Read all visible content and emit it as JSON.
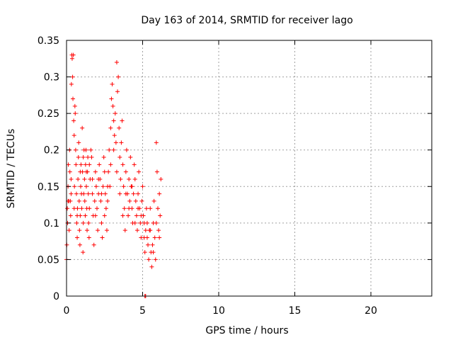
{
  "chart_data": {
    "type": "scatter",
    "title": "Day 163 of 2014, SRMTID for receiver lago",
    "xlabel": "GPS time / hours",
    "ylabel": "SRMTID / TECUs",
    "xlim": [
      0,
      24
    ],
    "ylim": [
      0,
      0.35
    ],
    "x_ticks": [
      0,
      5,
      10,
      15,
      20
    ],
    "x_tick_labels": [
      "0",
      "5",
      "10",
      "15",
      "20"
    ],
    "y_ticks": [
      0,
      0.05,
      0.1,
      0.15,
      0.2,
      0.25,
      0.3,
      0.35
    ],
    "y_tick_labels": [
      "0",
      "0.05",
      "0.1",
      "0.15",
      "0.2",
      "0.25",
      "0.3",
      "0.35"
    ],
    "grid": true,
    "marker": "+",
    "series": [
      {
        "name": "SRMTID",
        "color": "#ff0000",
        "points": [
          [
            0.0,
            0.05
          ],
          [
            0.02,
            0.07
          ],
          [
            0.05,
            0.12
          ],
          [
            0.07,
            0.1
          ],
          [
            0.1,
            0.15
          ],
          [
            0.12,
            0.18
          ],
          [
            0.15,
            0.13
          ],
          [
            0.17,
            0.09
          ],
          [
            0.2,
            0.2
          ],
          [
            0.22,
            0.17
          ],
          [
            0.25,
            0.13
          ],
          [
            0.27,
            0.11
          ],
          [
            0.3,
            0.16
          ],
          [
            0.32,
            0.29
          ],
          [
            0.35,
            0.33
          ],
          [
            0.37,
            0.325
          ],
          [
            0.4,
            0.3
          ],
          [
            0.42,
            0.27
          ],
          [
            0.45,
            0.33
          ],
          [
            0.47,
            0.24
          ],
          [
            0.5,
            0.22
          ],
          [
            0.52,
            0.15
          ],
          [
            0.55,
            0.26
          ],
          [
            0.57,
            0.25
          ],
          [
            0.6,
            0.2
          ],
          [
            0.62,
            0.18
          ],
          [
            0.65,
            0.14
          ],
          [
            0.67,
            0.1
          ],
          [
            0.7,
            0.08
          ],
          [
            0.72,
            0.12
          ],
          [
            0.75,
            0.16
          ],
          [
            0.78,
            0.19
          ],
          [
            0.8,
            0.21
          ],
          [
            0.83,
            0.13
          ],
          [
            0.85,
            0.09
          ],
          [
            0.88,
            0.07
          ],
          [
            0.9,
            0.11
          ],
          [
            0.93,
            0.15
          ],
          [
            0.95,
            0.18
          ],
          [
            0.98,
            0.14
          ],
          [
            1.0,
            0.12
          ],
          [
            1.03,
            0.23
          ],
          [
            1.05,
            0.17
          ],
          [
            1.08,
            0.06
          ],
          [
            1.1,
            0.1
          ],
          [
            1.13,
            0.14
          ],
          [
            1.15,
            0.2
          ],
          [
            1.18,
            0.16
          ],
          [
            1.2,
            0.13
          ],
          [
            1.23,
            0.11
          ],
          [
            1.25,
            0.18
          ],
          [
            1.28,
            0.2
          ],
          [
            1.3,
            0.15
          ],
          [
            1.33,
            0.12
          ],
          [
            1.35,
            0.09
          ],
          [
            1.38,
            0.17
          ],
          [
            1.4,
            0.19
          ],
          [
            1.43,
            0.14
          ],
          [
            1.45,
            0.1
          ],
          [
            1.48,
            0.08
          ],
          [
            1.5,
            0.12
          ],
          [
            1.55,
            0.16
          ],
          [
            1.6,
            0.2
          ],
          [
            1.65,
            0.19
          ],
          [
            1.7,
            0.14
          ],
          [
            1.75,
            0.11
          ],
          [
            1.8,
            0.07
          ],
          [
            1.85,
            0.13
          ],
          [
            1.9,
            0.17
          ],
          [
            1.95,
            0.15
          ],
          [
            2.0,
            0.12
          ],
          [
            2.05,
            0.09
          ],
          [
            2.1,
            0.14
          ],
          [
            2.15,
            0.18
          ],
          [
            2.2,
            0.16
          ],
          [
            2.25,
            0.13
          ],
          [
            2.3,
            0.1
          ],
          [
            2.35,
            0.08
          ],
          [
            2.4,
            0.15
          ],
          [
            2.45,
            0.19
          ],
          [
            2.5,
            0.17
          ],
          [
            2.55,
            0.14
          ],
          [
            2.6,
            0.12
          ],
          [
            2.65,
            0.09
          ],
          [
            2.7,
            0.13
          ],
          [
            2.75,
            0.17
          ],
          [
            2.8,
            0.2
          ],
          [
            2.85,
            0.15
          ],
          [
            2.9,
            0.23
          ],
          [
            2.95,
            0.27
          ],
          [
            3.0,
            0.29
          ],
          [
            3.05,
            0.26
          ],
          [
            3.1,
            0.24
          ],
          [
            3.15,
            0.22
          ],
          [
            3.2,
            0.25
          ],
          [
            3.25,
            0.21
          ],
          [
            3.3,
            0.32
          ],
          [
            3.35,
            0.28
          ],
          [
            3.4,
            0.3
          ],
          [
            3.45,
            0.23
          ],
          [
            3.5,
            0.19
          ],
          [
            3.55,
            0.16
          ],
          [
            3.6,
            0.21
          ],
          [
            3.65,
            0.24
          ],
          [
            3.7,
            0.18
          ],
          [
            3.75,
            0.15
          ],
          [
            3.8,
            0.12
          ],
          [
            3.85,
            0.09
          ],
          [
            3.9,
            0.17
          ],
          [
            3.95,
            0.2
          ],
          [
            4.0,
            0.14
          ],
          [
            4.05,
            0.11
          ],
          [
            4.1,
            0.16
          ],
          [
            4.15,
            0.13
          ],
          [
            4.2,
            0.19
          ],
          [
            4.25,
            0.15
          ],
          [
            4.3,
            0.12
          ],
          [
            4.35,
            0.1
          ],
          [
            4.4,
            0.14
          ],
          [
            4.45,
            0.18
          ],
          [
            4.5,
            0.16
          ],
          [
            4.55,
            0.13
          ],
          [
            4.6,
            0.11
          ],
          [
            4.65,
            0.09
          ],
          [
            4.7,
            0.14
          ],
          [
            4.75,
            0.17
          ],
          [
            4.8,
            0.12
          ],
          [
            4.85,
            0.1
          ],
          [
            4.9,
            0.08
          ],
          [
            4.95,
            0.13
          ],
          [
            5.0,
            0.15
          ],
          [
            5.05,
            0.11
          ],
          [
            5.1,
            0.08
          ],
          [
            5.15,
            0.06
          ],
          [
            5.2,
            0.09
          ],
          [
            5.25,
            0.12
          ],
          [
            5.3,
            0.1
          ],
          [
            5.35,
            0.07
          ],
          [
            5.4,
            0.05
          ],
          [
            5.45,
            0.09
          ],
          [
            5.5,
            0.12
          ],
          [
            5.55,
            0.06
          ],
          [
            5.6,
            0.04
          ],
          [
            5.65,
            0.07
          ],
          [
            5.7,
            0.1
          ],
          [
            5.75,
            0.13
          ],
          [
            5.8,
            0.08
          ],
          [
            5.85,
            0.05
          ],
          [
            5.9,
            0.21
          ],
          [
            5.95,
            0.17
          ],
          [
            6.0,
            0.12
          ],
          [
            6.05,
            0.09
          ],
          [
            6.1,
            0.14
          ],
          [
            6.15,
            0.11
          ],
          [
            6.2,
            0.16
          ],
          [
            0.1,
            0.13
          ],
          [
            0.3,
            0.14
          ],
          [
            0.5,
            0.12
          ],
          [
            0.7,
            0.11
          ],
          [
            0.9,
            0.17
          ],
          [
            1.1,
            0.19
          ],
          [
            1.3,
            0.17
          ],
          [
            1.5,
            0.18
          ],
          [
            1.7,
            0.16
          ],
          [
            1.9,
            0.11
          ],
          [
            2.1,
            0.16
          ],
          [
            2.3,
            0.14
          ],
          [
            2.5,
            0.11
          ],
          [
            2.7,
            0.15
          ],
          [
            2.9,
            0.18
          ],
          [
            3.1,
            0.2
          ],
          [
            3.3,
            0.17
          ],
          [
            3.5,
            0.14
          ],
          [
            3.7,
            0.11
          ],
          [
            3.9,
            0.14
          ],
          [
            4.1,
            0.12
          ],
          [
            4.3,
            0.15
          ],
          [
            4.5,
            0.1
          ],
          [
            4.7,
            0.12
          ],
          [
            4.9,
            0.11
          ],
          [
            5.1,
            0.1
          ],
          [
            5.3,
            0.08
          ],
          [
            5.5,
            0.09
          ],
          [
            5.7,
            0.06
          ],
          [
            5.9,
            0.1
          ],
          [
            6.1,
            0.08
          ],
          [
            5.15,
            0.0
          ],
          [
            5.2,
            0.0
          ]
        ]
      }
    ]
  }
}
